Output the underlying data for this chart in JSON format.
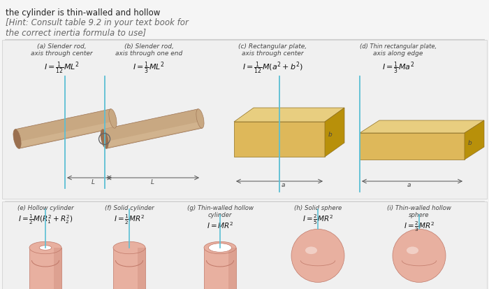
{
  "bg_color": "#f5f5f5",
  "white": "#ffffff",
  "header_line1": "the cylinder is thin-walled and hollow",
  "header_line2": "[Hint: Consult table 9.2 in your text book for",
  "header_line3": "the correct inertia formula to use]",
  "rod_color": "#c8a882",
  "rod_dark": "#9a7050",
  "rod_highlight": "#dbbf9a",
  "plate_face": "#deb85a",
  "plate_side": "#b8900a",
  "plate_top": "#e8ce80",
  "sphere_color": "#e8b0a0",
  "sphere_dark": "#c07868",
  "sphere_highlight": "#f0c8b8",
  "axis_color": "#5bbfd4",
  "arrow_color": "#555555",
  "label_color": "#444444",
  "formula_color": "#111111",
  "divider_color": "#cccccc",
  "row1_bg": "#eeeeee",
  "row2_bg": "#eeeeee"
}
